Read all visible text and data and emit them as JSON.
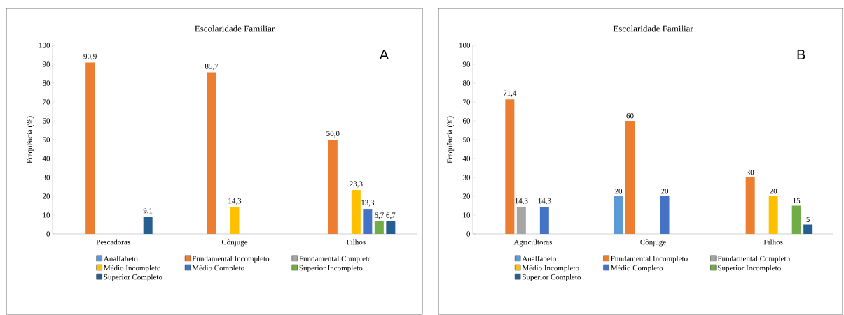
{
  "chart_data": [
    {
      "type": "bar",
      "title": "Escolaridade Familiar",
      "ylabel": "Frequência (%)",
      "categories": [
        "Pescadoras",
        "Cônjuge",
        "Filhos"
      ],
      "ylim": [
        0,
        100
      ],
      "yticks": [
        0,
        10,
        20,
        30,
        40,
        50,
        60,
        70,
        80,
        90,
        100
      ],
      "legend": "bottom",
      "annotations": [
        "A"
      ],
      "series": [
        {
          "name": "Analfabeto",
          "color": "#5b9bd5",
          "values": [
            null,
            null,
            null
          ],
          "value_labels": [
            null,
            null,
            null
          ]
        },
        {
          "name": "Fundamental Incompleto",
          "color": "#ed7d31",
          "values": [
            90.9,
            85.7,
            50.0
          ],
          "value_labels": [
            "90,9",
            "85,7",
            "50,0"
          ]
        },
        {
          "name": "Fundamental Completo",
          "color": "#a5a5a5",
          "values": [
            null,
            null,
            null
          ],
          "value_labels": [
            null,
            null,
            null
          ]
        },
        {
          "name": "Médio Incompleto",
          "color": "#ffc000",
          "values": [
            null,
            14.3,
            23.3
          ],
          "value_labels": [
            null,
            "14,3",
            "23,3"
          ]
        },
        {
          "name": "Médio Completo",
          "color": "#4472c4",
          "values": [
            null,
            null,
            13.3
          ],
          "value_labels": [
            null,
            null,
            "13,3"
          ]
        },
        {
          "name": "Superior Incompleto",
          "color": "#70ad47",
          "values": [
            null,
            null,
            6.7
          ],
          "value_labels": [
            null,
            null,
            "6,7"
          ]
        },
        {
          "name": "Superior Completo",
          "color": "#255e91",
          "values": [
            9.1,
            null,
            6.7
          ],
          "value_labels": [
            "9,1",
            null,
            "6,7"
          ]
        }
      ]
    },
    {
      "type": "bar",
      "title": "Escolaridade Familiar",
      "ylabel": "Frequência (%)",
      "categories": [
        "Agricultoras",
        "Cônjuge",
        "Filhos"
      ],
      "ylim": [
        0,
        100
      ],
      "yticks": [
        0,
        10,
        20,
        30,
        40,
        50,
        60,
        70,
        80,
        90,
        100
      ],
      "legend": "bottom",
      "annotations": [
        "B"
      ],
      "series": [
        {
          "name": "Analfabeto",
          "color": "#5b9bd5",
          "values": [
            null,
            20,
            null
          ],
          "value_labels": [
            null,
            "20",
            null
          ]
        },
        {
          "name": "Fundamental Incompleto",
          "color": "#ed7d31",
          "values": [
            71.4,
            60,
            30
          ],
          "value_labels": [
            "71,4",
            "60",
            "30"
          ]
        },
        {
          "name": "Fundamental Completo",
          "color": "#a5a5a5",
          "values": [
            14.3,
            null,
            null
          ],
          "value_labels": [
            "14,3",
            null,
            null
          ]
        },
        {
          "name": "Médio Incompleto",
          "color": "#ffc000",
          "values": [
            null,
            null,
            20
          ],
          "value_labels": [
            null,
            null,
            "20"
          ]
        },
        {
          "name": "Médio Completo",
          "color": "#4472c4",
          "values": [
            14.3,
            20,
            null
          ],
          "value_labels": [
            "14,3",
            "20",
            null
          ]
        },
        {
          "name": "Superior Incompleto",
          "color": "#70ad47",
          "values": [
            null,
            null,
            15
          ],
          "value_labels": [
            null,
            null,
            "15"
          ]
        },
        {
          "name": "Superior Completo",
          "color": "#255e91",
          "values": [
            null,
            null,
            5
          ],
          "value_labels": [
            null,
            null,
            "5"
          ]
        }
      ]
    }
  ]
}
